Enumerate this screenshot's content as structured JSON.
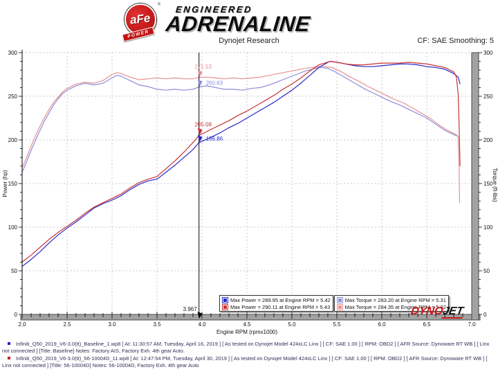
{
  "header": {
    "brand": {
      "badge_top": "aFe",
      "badge_reg": "®",
      "badge_bottom": "POWER",
      "line1": "ENGINEERED",
      "line2": "ADRENALINE"
    },
    "subtitle": "Dynojet Research",
    "smoothing": "CF: SAE Smoothing: 5"
  },
  "watermark": {
    "dyno": "DYNO",
    "jet": "JET"
  },
  "chart_data": {
    "type": "line",
    "x_axis": {
      "label": "Engine RPM (rpmx1000)",
      "min": 2.0,
      "max": 7.0,
      "ticks": [
        "2.0",
        "2.5",
        "3.0",
        "3.5",
        "4.0",
        "4.5",
        "5.0",
        "5.5",
        "6.0",
        "6.5",
        "7.0"
      ],
      "minor_step": 0.1
    },
    "y_left": {
      "label": "Power (hp)",
      "min": 0,
      "max": 300,
      "ticks": [
        0,
        50,
        100,
        150,
        200,
        250,
        300
      ],
      "minor_step": 10
    },
    "y_right": {
      "label": "Torque (ft-lbs)",
      "min": 0,
      "max": 300,
      "ticks": [
        0,
        50,
        100,
        150,
        200,
        250,
        300
      ],
      "minor_step": 10
    },
    "grid": true,
    "cursor": {
      "x": 3.967,
      "label": "3.967"
    },
    "legend": [
      {
        "color": "#2828c8",
        "text": "Max Power = 289.95 at Engine RPM = 5.42"
      },
      {
        "color": "#c83232",
        "text": "Max Power = 290.11 at Engine RPM = 5.43"
      },
      {
        "color": "#8c8cdc",
        "text": "Max Torque = 283.20 at Engine RPM = 5.31"
      },
      {
        "color": "#e69090",
        "text": "Max Torque = 284.35 at Engine RPM = 5.32"
      }
    ],
    "series": [
      {
        "name": "baseline-torque",
        "color": "#8c8cdc",
        "max": 283.2,
        "max_rpm": 5.31,
        "cursor_value": 260.63,
        "cursor_label": "260.63",
        "cursor_label_pos": "right",
        "points": [
          [
            2.0,
            163
          ],
          [
            2.05,
            175
          ],
          [
            2.1,
            188
          ],
          [
            2.15,
            200
          ],
          [
            2.2,
            211
          ],
          [
            2.25,
            222
          ],
          [
            2.3,
            231
          ],
          [
            2.35,
            240
          ],
          [
            2.4,
            247
          ],
          [
            2.45,
            253
          ],
          [
            2.5,
            257
          ],
          [
            2.6,
            262
          ],
          [
            2.7,
            265
          ],
          [
            2.8,
            263
          ],
          [
            2.9,
            265
          ],
          [
            3.0,
            271
          ],
          [
            3.05,
            274
          ],
          [
            3.1,
            273
          ],
          [
            3.2,
            268
          ],
          [
            3.3,
            263
          ],
          [
            3.4,
            261
          ],
          [
            3.5,
            258
          ],
          [
            3.6,
            257
          ],
          [
            3.7,
            258
          ],
          [
            3.8,
            257
          ],
          [
            3.9,
            258
          ],
          [
            3.967,
            260.6
          ],
          [
            4.05,
            262
          ],
          [
            4.15,
            260
          ],
          [
            4.25,
            258
          ],
          [
            4.35,
            258
          ],
          [
            4.45,
            257
          ],
          [
            4.55,
            259
          ],
          [
            4.65,
            260
          ],
          [
            4.75,
            263
          ],
          [
            4.85,
            267
          ],
          [
            4.95,
            271
          ],
          [
            5.05,
            275
          ],
          [
            5.15,
            279
          ],
          [
            5.31,
            283.2
          ],
          [
            5.4,
            282
          ],
          [
            5.5,
            277
          ],
          [
            5.6,
            271
          ],
          [
            5.7,
            265
          ],
          [
            5.8,
            259
          ],
          [
            5.9,
            254
          ],
          [
            6.0,
            249
          ],
          [
            6.1,
            244
          ],
          [
            6.2,
            240
          ],
          [
            6.3,
            235
          ],
          [
            6.4,
            230
          ],
          [
            6.5,
            225
          ],
          [
            6.6,
            218
          ],
          [
            6.7,
            211
          ],
          [
            6.8,
            206
          ],
          [
            6.85,
            204
          ]
        ]
      },
      {
        "name": "intake-torque",
        "color": "#e69090",
        "max": 284.35,
        "max_rpm": 5.32,
        "cursor_value": 271.53,
        "cursor_label": "271.53",
        "cursor_label_pos": "above",
        "points": [
          [
            2.0,
            168
          ],
          [
            2.05,
            180
          ],
          [
            2.1,
            193
          ],
          [
            2.15,
            205
          ],
          [
            2.2,
            216
          ],
          [
            2.25,
            226
          ],
          [
            2.3,
            235
          ],
          [
            2.35,
            243
          ],
          [
            2.4,
            249
          ],
          [
            2.45,
            255
          ],
          [
            2.5,
            259
          ],
          [
            2.6,
            264
          ],
          [
            2.7,
            266
          ],
          [
            2.8,
            265
          ],
          [
            2.9,
            268
          ],
          [
            3.0,
            275
          ],
          [
            3.05,
            277
          ],
          [
            3.1,
            276
          ],
          [
            3.2,
            272
          ],
          [
            3.3,
            269
          ],
          [
            3.4,
            270
          ],
          [
            3.5,
            271
          ],
          [
            3.6,
            270
          ],
          [
            3.7,
            271
          ],
          [
            3.8,
            270
          ],
          [
            3.9,
            270
          ],
          [
            3.967,
            271.5
          ],
          [
            4.05,
            272
          ],
          [
            4.15,
            271
          ],
          [
            4.25,
            270
          ],
          [
            4.35,
            271
          ],
          [
            4.45,
            270
          ],
          [
            4.55,
            271
          ],
          [
            4.65,
            272
          ],
          [
            4.75,
            274
          ],
          [
            4.85,
            276
          ],
          [
            4.95,
            278
          ],
          [
            5.05,
            280
          ],
          [
            5.15,
            282
          ],
          [
            5.32,
            284.4
          ],
          [
            5.45,
            283
          ],
          [
            5.55,
            278
          ],
          [
            5.65,
            272
          ],
          [
            5.75,
            267
          ],
          [
            5.85,
            261
          ],
          [
            5.95,
            256
          ],
          [
            6.05,
            251
          ],
          [
            6.15,
            246
          ],
          [
            6.25,
            242
          ],
          [
            6.35,
            236
          ],
          [
            6.45,
            230
          ],
          [
            6.55,
            224
          ],
          [
            6.65,
            216
          ],
          [
            6.75,
            210
          ],
          [
            6.83,
            206
          ],
          [
            6.85,
            203
          ],
          [
            6.86,
            165
          ],
          [
            6.865,
            128
          ]
        ]
      },
      {
        "name": "baseline-power",
        "color": "#2828c8",
        "max": 289.95,
        "max_rpm": 5.42,
        "cursor_value": 196.86,
        "cursor_label": "196.86",
        "cursor_label_pos": "right",
        "points": [
          [
            2.0,
            55
          ],
          [
            2.1,
            63
          ],
          [
            2.2,
            72
          ],
          [
            2.3,
            82
          ],
          [
            2.4,
            91
          ],
          [
            2.5,
            99
          ],
          [
            2.6,
            106
          ],
          [
            2.7,
            114
          ],
          [
            2.8,
            122
          ],
          [
            2.9,
            127
          ],
          [
            3.0,
            131
          ],
          [
            3.1,
            136
          ],
          [
            3.2,
            143
          ],
          [
            3.3,
            149
          ],
          [
            3.4,
            153
          ],
          [
            3.5,
            155
          ],
          [
            3.6,
            163
          ],
          [
            3.7,
            171
          ],
          [
            3.8,
            180
          ],
          [
            3.9,
            189
          ],
          [
            3.967,
            196.9
          ],
          [
            4.1,
            203
          ],
          [
            4.2,
            208
          ],
          [
            4.3,
            214
          ],
          [
            4.4,
            219
          ],
          [
            4.5,
            225
          ],
          [
            4.6,
            231
          ],
          [
            4.7,
            237
          ],
          [
            4.8,
            243
          ],
          [
            4.9,
            250
          ],
          [
            5.0,
            257
          ],
          [
            5.1,
            265
          ],
          [
            5.2,
            274
          ],
          [
            5.3,
            283
          ],
          [
            5.42,
            289.9
          ],
          [
            5.5,
            289
          ],
          [
            5.6,
            287
          ],
          [
            5.7,
            285
          ],
          [
            5.8,
            284
          ],
          [
            5.9,
            284
          ],
          [
            6.0,
            285
          ],
          [
            6.1,
            286
          ],
          [
            6.2,
            287
          ],
          [
            6.3,
            287
          ],
          [
            6.4,
            286
          ],
          [
            6.5,
            284
          ],
          [
            6.6,
            283
          ],
          [
            6.7,
            281
          ],
          [
            6.8,
            276
          ],
          [
            6.85,
            272
          ],
          [
            6.87,
            264
          ]
        ]
      },
      {
        "name": "intake-power",
        "color": "#c83232",
        "max": 290.11,
        "max_rpm": 5.43,
        "cursor_value": 205.08,
        "cursor_label": "205.08",
        "cursor_label_pos": "above",
        "points": [
          [
            2.0,
            60
          ],
          [
            2.1,
            68
          ],
          [
            2.2,
            77
          ],
          [
            2.3,
            86
          ],
          [
            2.4,
            94
          ],
          [
            2.5,
            101
          ],
          [
            2.6,
            108
          ],
          [
            2.7,
            116
          ],
          [
            2.8,
            123
          ],
          [
            2.9,
            128
          ],
          [
            3.0,
            133
          ],
          [
            3.1,
            138
          ],
          [
            3.2,
            145
          ],
          [
            3.3,
            151
          ],
          [
            3.4,
            155
          ],
          [
            3.5,
            158
          ],
          [
            3.6,
            167
          ],
          [
            3.7,
            176
          ],
          [
            3.8,
            186
          ],
          [
            3.9,
            197
          ],
          [
            3.967,
            205.1
          ],
          [
            4.1,
            212
          ],
          [
            4.2,
            217
          ],
          [
            4.3,
            222
          ],
          [
            4.4,
            228
          ],
          [
            4.5,
            233
          ],
          [
            4.6,
            239
          ],
          [
            4.7,
            245
          ],
          [
            4.8,
            251
          ],
          [
            4.9,
            258
          ],
          [
            5.0,
            264
          ],
          [
            5.1,
            271
          ],
          [
            5.2,
            279
          ],
          [
            5.3,
            286
          ],
          [
            5.43,
            290.1
          ],
          [
            5.5,
            289
          ],
          [
            5.6,
            287
          ],
          [
            5.7,
            286
          ],
          [
            5.8,
            286
          ],
          [
            5.9,
            287
          ],
          [
            6.0,
            288
          ],
          [
            6.1,
            288
          ],
          [
            6.2,
            288
          ],
          [
            6.3,
            289
          ],
          [
            6.4,
            288
          ],
          [
            6.5,
            287
          ],
          [
            6.6,
            285
          ],
          [
            6.7,
            283
          ],
          [
            6.8,
            278
          ],
          [
            6.83,
            272
          ],
          [
            6.85,
            252
          ],
          [
            6.86,
            215
          ],
          [
            6.87,
            170
          ]
        ]
      }
    ]
  },
  "footer": {
    "runs": [
      {
        "bullet_color": "#2222cc",
        "text": "Infiniti_Q50_2019_V6-3.0(tt)_Baseline_1.wp8 [ At: 11:30:57 AM, Tuesday, April 16, 2019 ] [ As tested on Dynojet Model 424xLC Linx ] [ CF: SAE 1.00 ] [ RPM: OBD2 ] [ AFR Source: Dynoware RT WB ] [ Linx not connected ] [Title: Baseline]  Notes: Factory AIS, Factory Exh. 4th gear Auto."
      },
      {
        "bullet_color": "#cc2222",
        "text": "Infiniti_Q50_2019_V6-3.0(tt)_56-10004D_11.wp8 [ At: 12:47:54 PM, Tuesday, April 30, 2019 ] [ As tested on Dynojet Model 424xLC Linx ] [ CF: SAE 1.00 ] [ RPM: OBD2 ] [ AFR Source: Dynoware RT WB ] [ Linx not connected ] [Title: 56-10004D]  Notes: 56-10004D, Factory Exh. 4th gear Auto"
      }
    ]
  }
}
